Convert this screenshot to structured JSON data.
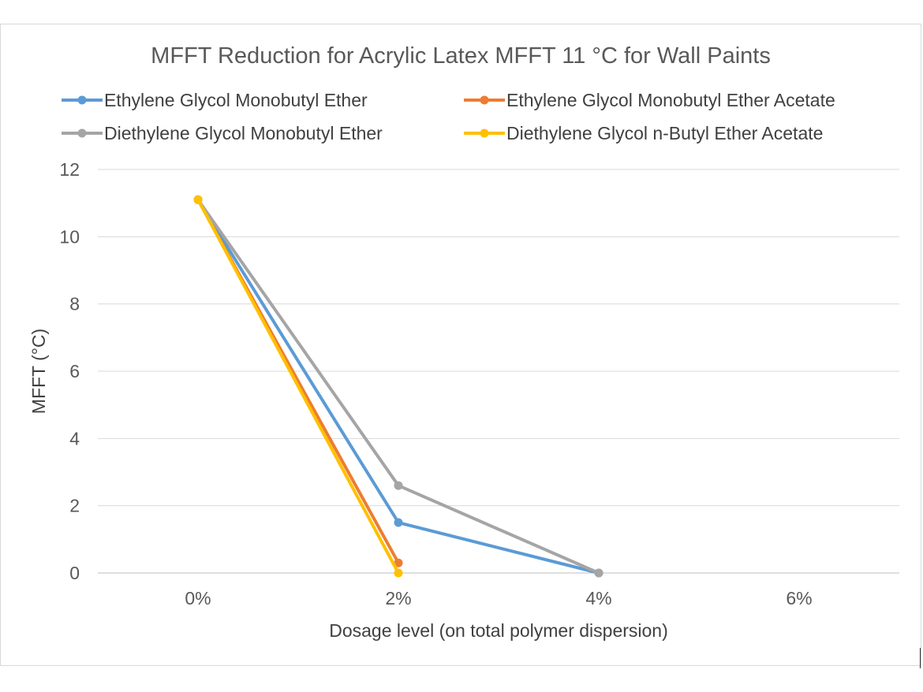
{
  "chart_data": {
    "type": "line",
    "title": "MFFT Reduction for Acrylic Latex MFFT 11 °C for Wall Paints",
    "xlabel": "Dosage level (on total polymer dispersion)",
    "ylabel": "MFFT (°C)",
    "categories": [
      "0%",
      "2%",
      "4%",
      "6%"
    ],
    "ylim": [
      0,
      12
    ],
    "yticks": [
      "0",
      "2",
      "4",
      "6",
      "8",
      "10",
      "12"
    ],
    "grid": true,
    "legend_position": "top",
    "series": [
      {
        "name": "Ethylene Glycol Monobutyl Ether",
        "color": "#5b9bd5",
        "values": [
          11.1,
          1.5,
          0,
          null
        ]
      },
      {
        "name": "Ethylene Glycol Monobutyl Ether Acetate",
        "color": "#ed7d31",
        "values": [
          11.1,
          0.3,
          null,
          null
        ]
      },
      {
        "name": "Diethylene Glycol Monobutyl Ether",
        "color": "#a5a5a5",
        "values": [
          11.1,
          2.6,
          0,
          null
        ]
      },
      {
        "name": "Diethylene Glycol n-Butyl Ether Acetate",
        "color": "#ffc000",
        "values": [
          11.1,
          0,
          null,
          null
        ]
      }
    ]
  }
}
